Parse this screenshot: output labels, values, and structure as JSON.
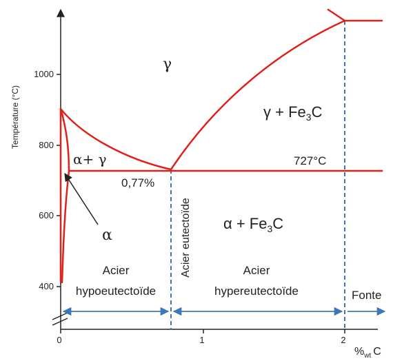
{
  "axes": {
    "y_label": "Température (°C)",
    "x_label_main": "%",
    "x_label_sub": "wt",
    "x_label_end": "C",
    "y_ticks": [
      "400",
      "600",
      "800",
      "1000"
    ],
    "x_ticks": [
      "0",
      "1",
      "2"
    ]
  },
  "phases": {
    "gamma": "γ",
    "gamma_cementite": {
      "prefix": "γ + ",
      "formula": "Fe",
      "sub": "3",
      "suffix": "C"
    },
    "alpha_gamma": "α+ γ",
    "alpha": "α",
    "alpha_cementite": {
      "prefix": "α + ",
      "formula": "Fe",
      "sub": "3",
      "suffix": "C"
    }
  },
  "annotations": {
    "eutectoid_temp": "727°C",
    "eutectoid_comp": "0,77%",
    "eutectoid_steel": "Acier eutectoïde"
  },
  "regions": {
    "hypo_line1": "Acier",
    "hypo_line2": "hypoeutectoïde",
    "hyper_line1": "Acier",
    "hyper_line2": "hypereutectoïde",
    "cast_iron": "Fonte"
  },
  "colors": {
    "phase_lines": "#e0201b",
    "dashed_lines": "#3a78b8",
    "arrows": "#3a78b8",
    "axes": "#222222"
  }
}
